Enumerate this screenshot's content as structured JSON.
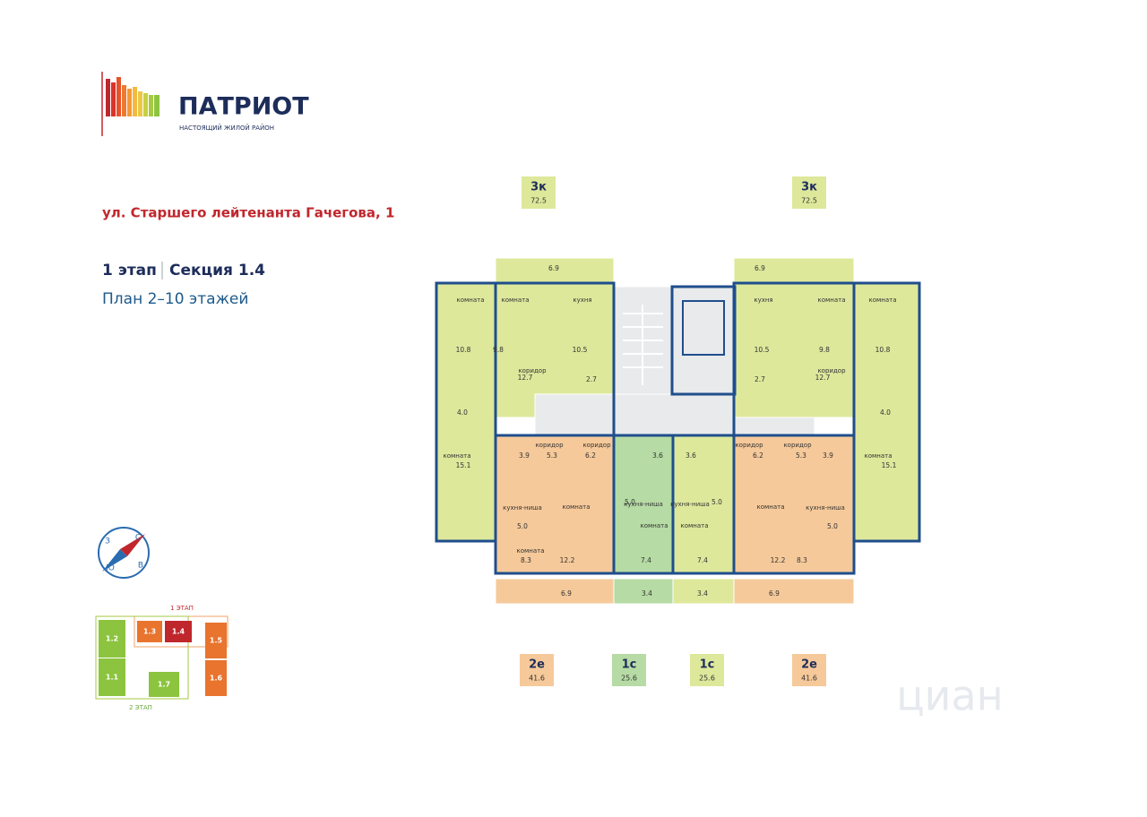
{
  "logo": {
    "title": "ПАТРИОТ",
    "subtitle": "НАСТОЯЩИЙ ЖИЛОЙ РАЙОН"
  },
  "address": "ул. Старшего лейтенанта Гачегова, 1",
  "stage": "1 этап",
  "section": "Секция 1.4",
  "plan": "План 2–10 этажей",
  "compass": {
    "north": "С",
    "south": "Ю",
    "west": "З",
    "east": "В"
  },
  "apartments": [
    {
      "type": "3к",
      "area": "72.5"
    },
    {
      "type": "3к",
      "area": "72.5"
    },
    {
      "type": "2е",
      "area": "41.6"
    },
    {
      "type": "1с",
      "area": "25.6"
    },
    {
      "type": "1с",
      "area": "25.6"
    },
    {
      "type": "2е",
      "area": "41.6"
    }
  ],
  "rooms": [
    {
      "label": "комната",
      "area": "10.8"
    },
    {
      "label": "комната",
      "area": "9.8"
    },
    {
      "label": "кухня",
      "area": "10.5"
    },
    {
      "label": "коридор",
      "area": "12.7"
    },
    {
      "area": "2.7"
    },
    {
      "area": "4.0"
    },
    {
      "label": "комната",
      "area": "15.1"
    },
    {
      "area": "6.9"
    },
    {
      "label": "коридор",
      "area": "5.3"
    },
    {
      "area": "3.9"
    },
    {
      "label": "коридор",
      "area": "6.2"
    },
    {
      "label": "кухня-ниша",
      "area": "5.0"
    },
    {
      "label": "комната",
      "area": "12.2"
    },
    {
      "label": "комната",
      "area": "8.3"
    },
    {
      "area": "6.9"
    },
    {
      "area": "3.6"
    },
    {
      "area": "3.6"
    },
    {
      "label": "кухня-ниша",
      "area": "5.0"
    },
    {
      "label": "кухня-ниша",
      "area": "5.0"
    },
    {
      "label": "комната",
      "area": "7.4"
    },
    {
      "label": "комната",
      "area": "7.4"
    },
    {
      "area": "3.4"
    },
    {
      "area": "3.4"
    },
    {
      "area": "6.9"
    },
    {
      "label": "кухня",
      "area": "10.5"
    },
    {
      "label": "комната",
      "area": "9.8"
    },
    {
      "label": "комната",
      "area": "10.8"
    },
    {
      "label": "коридор",
      "area": "12.7"
    },
    {
      "area": "2.7"
    },
    {
      "area": "4.0"
    },
    {
      "label": "комната",
      "area": "15.1"
    },
    {
      "label": "коридор",
      "area": "6.2"
    },
    {
      "label": "коридор",
      "area": "5.3"
    },
    {
      "area": "3.9"
    },
    {
      "label": "комната",
      "area": "12.2"
    },
    {
      "label": "кухня-ниша",
      "area": "5.0"
    },
    {
      "area": "8.3"
    },
    {
      "area": "6.9"
    }
  ],
  "site_map": {
    "stage1": "1 ЭТАП",
    "stage2": "2 ЭТАП",
    "sections": [
      "1.1",
      "1.2",
      "1.3",
      "1.4",
      "1.5",
      "1.6",
      "1.7"
    ]
  },
  "watermark": "циан"
}
